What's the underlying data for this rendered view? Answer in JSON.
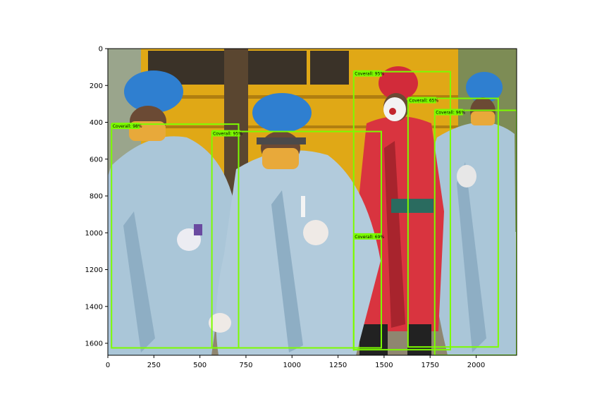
{
  "axes": {
    "x_ticks": [
      0,
      250,
      500,
      750,
      1000,
      1250,
      1500,
      1750,
      2000
    ],
    "y_ticks": [
      0,
      200,
      400,
      600,
      800,
      1000,
      1200,
      1400,
      1600
    ],
    "x_range": [
      0,
      2220
    ],
    "y_range": [
      1665,
      0
    ],
    "frame_color": "#000000"
  },
  "detections": {
    "box_color": "#7cfc00",
    "label_color": "#7cfc00",
    "boxes": [
      {
        "label": "Coverall: 98%",
        "x1": 20,
        "y1": 410,
        "x2": 710,
        "y2": 1625
      },
      {
        "label": "Coverall: 95%",
        "x1": 565,
        "y1": 450,
        "x2": 1485,
        "y2": 1625
      },
      {
        "label": "Coverall: 95%",
        "x1": 1335,
        "y1": 125,
        "x2": 1860,
        "y2": 1635
      },
      {
        "label": "Coverall: 65%",
        "x1": 1630,
        "y1": 270,
        "x2": 2120,
        "y2": 1620
      },
      {
        "label": "Coverall: 96%",
        "x1": 1775,
        "y1": 335,
        "x2": 2220,
        "y2": 1665
      },
      {
        "label": "Coverall: 69%",
        "x1": 1335,
        "y1": 1010,
        "x2": 1340,
        "y2": 1640
      }
    ]
  },
  "scene": {
    "colors": {
      "truck": "#e0a816",
      "truck_dark": "#3a3228",
      "sky": "#d9e2e6",
      "foliage": "#6c7a45",
      "ground": "#9c927a",
      "gown_blue": "#aac6d8",
      "gown_shadow": "#7d9cb2",
      "cap_blue": "#2f7fd0",
      "gown_red": "#d9343f",
      "mask_yellow": "#e8a93a",
      "glove": "#f1f1f1",
      "skin": "#6b4a34"
    }
  }
}
